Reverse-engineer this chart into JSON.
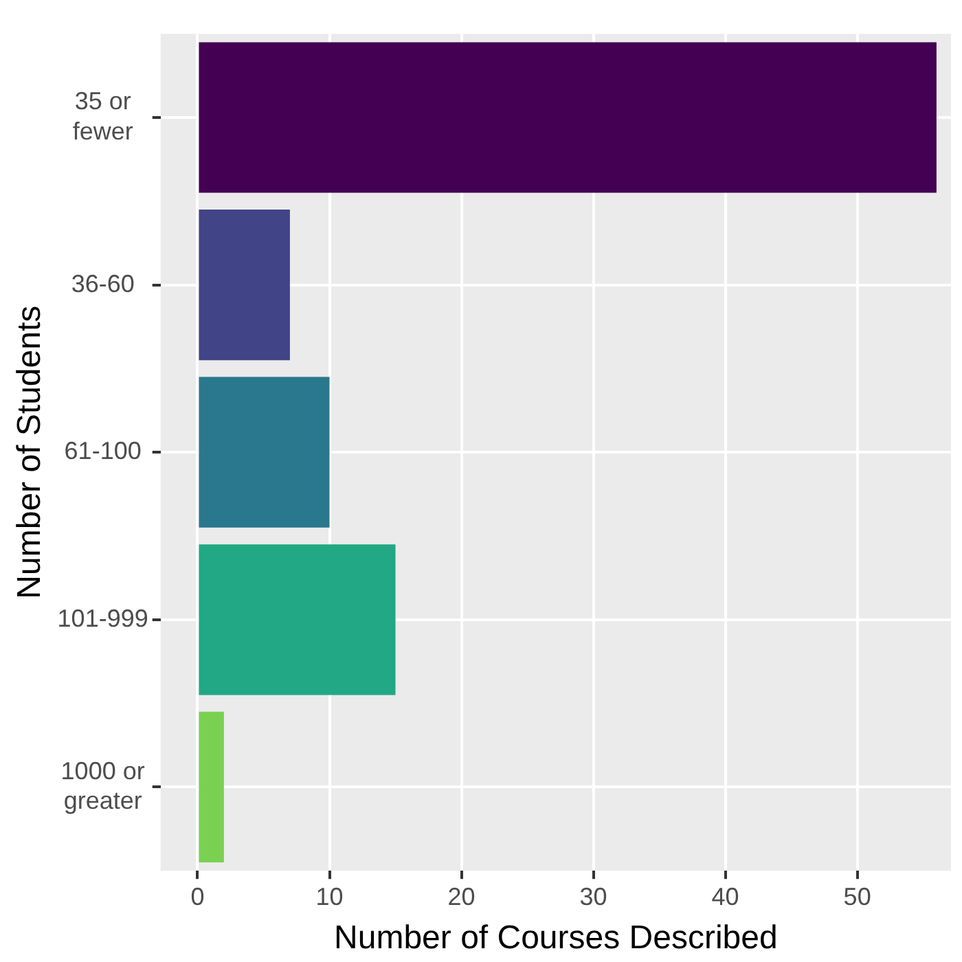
{
  "chart_data": {
    "type": "bar",
    "orientation": "horizontal",
    "xlabel": "Number of Courses Described",
    "ylabel": "Number of Students",
    "categories": [
      "35 or\nfewer",
      "36-60",
      "61-100",
      "101-999",
      "1000 or\ngreater"
    ],
    "values": [
      56,
      7,
      10,
      15,
      2
    ],
    "colors": [
      "#440154",
      "#414487",
      "#2a788e",
      "#22a884",
      "#7ad151"
    ],
    "xlim": [
      -2.8,
      57.1
    ],
    "xticks": [
      0,
      10,
      20,
      30,
      40,
      50
    ],
    "grid": true,
    "legend": false
  }
}
